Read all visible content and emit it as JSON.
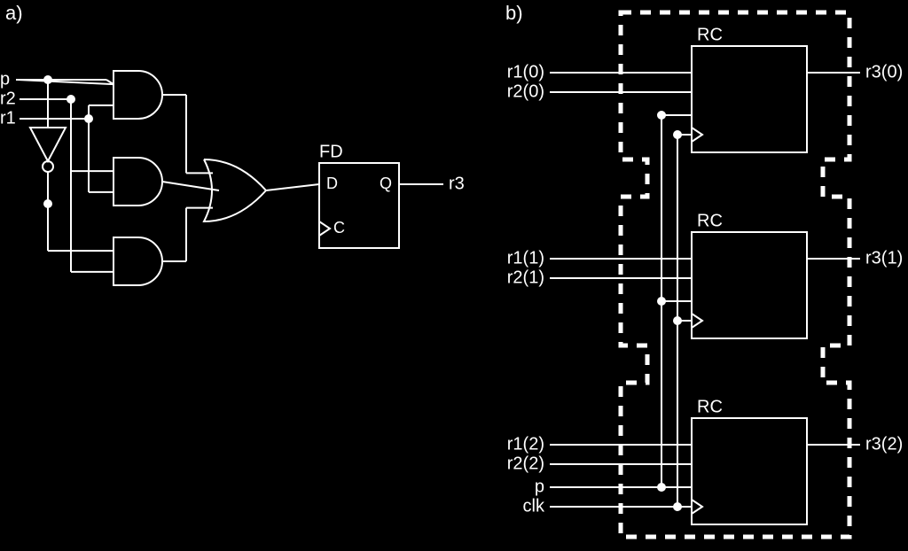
{
  "background_color": "#000000",
  "stroke_color": "#ffffff",
  "text_color": "#ffffff",
  "font_family": "Arial, sans-serif",
  "label_fontsize": 20,
  "panel_a": {
    "label": "a)",
    "inputs": {
      "p": "p",
      "r2": "r2",
      "r1": "r1"
    },
    "ff": {
      "title": "FD",
      "d": "D",
      "c": "C",
      "q": "Q"
    },
    "output": "r3"
  },
  "panel_b": {
    "label": "b)",
    "blocks": [
      {
        "title": "RC",
        "in1": "r1(0)",
        "in2": "r2(0)",
        "out": "r3(0)"
      },
      {
        "title": "RC",
        "in1": "r1(1)",
        "in2": "r2(1)",
        "out": "r3(1)"
      },
      {
        "title": "RC",
        "in1": "r1(2)",
        "in2": "r2(2)",
        "out": "r3(2)"
      }
    ],
    "shared_inputs": {
      "p": "p",
      "clk": "clk"
    }
  },
  "diagram": {
    "stroke_width_thin": 2,
    "stroke_width_thick": 5,
    "dash_pattern": "12,10",
    "junction_radius": 5,
    "bubble_radius": 6
  }
}
